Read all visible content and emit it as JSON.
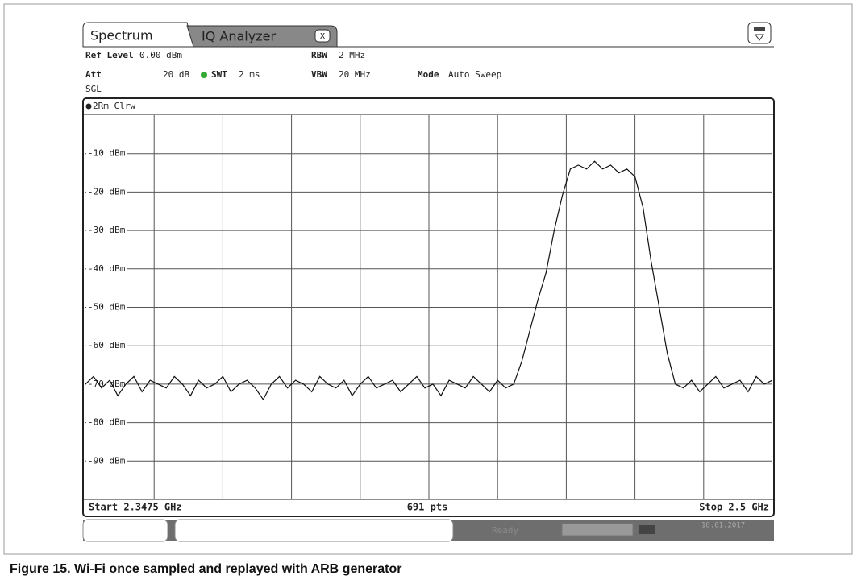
{
  "tabs": [
    "Spectrum",
    "IQ Analyzer",
    "X"
  ],
  "settings": {
    "ref_level_label": "Ref Level",
    "ref_level": "0.00 dBm",
    "rbw_label": "RBW",
    "rbw": "2 MHz",
    "att_label": "Att",
    "att": "20 dB",
    "swt_label": "SWT",
    "swt": "2 ms",
    "vbw_label": "VBW",
    "vbw": "20 MHz",
    "mode_label": "Mode",
    "mode": "Auto Sweep",
    "sweep": "SGL"
  },
  "plot": {
    "trace_label": "2Rm Clrw",
    "ylim": [
      -100,
      0
    ],
    "yticks": [
      {
        "value": -10,
        "label": "-10 dBm"
      },
      {
        "value": -20,
        "label": "-20 dBm"
      },
      {
        "value": -30,
        "label": "-30 dBm"
      },
      {
        "value": -40,
        "label": "-40 dBm"
      },
      {
        "value": -50,
        "label": "-50 dBm"
      },
      {
        "value": -60,
        "label": "-60 dBm"
      },
      {
        "value": -70,
        "label": "-70 dBm"
      },
      {
        "value": -80,
        "label": "-80 dBm"
      },
      {
        "value": -90,
        "label": "-90 dBm"
      }
    ],
    "trace": [
      -70,
      -68,
      -71,
      -69,
      -73,
      -70,
      -68,
      -72,
      -69,
      -70,
      -71,
      -68,
      -70,
      -73,
      -69,
      -71,
      -70,
      -68,
      -72,
      -70,
      -69,
      -71,
      -74,
      -70,
      -68,
      -71,
      -69,
      -70,
      -72,
      -68,
      -70,
      -71,
      -69,
      -73,
      -70,
      -68,
      -71,
      -70,
      -69,
      -72,
      -70,
      -68,
      -71,
      -70,
      -73,
      -69,
      -70,
      -71,
      -68,
      -70,
      -72,
      -69,
      -71,
      -70,
      -64,
      -56,
      -48,
      -41,
      -30,
      -21,
      -14,
      -13,
      -14,
      -12,
      -14,
      -13,
      -15,
      -14,
      -16,
      -24,
      -38,
      -50,
      -62,
      -70,
      -71,
      -69,
      -72,
      -70,
      -68,
      -71,
      -70,
      -69,
      -72,
      -68,
      -70,
      -69
    ]
  },
  "footer": {
    "start": "Start 2.3475 GHz",
    "points": "691 pts",
    "stop": "Stop 2.5 GHz"
  },
  "status": {
    "state": "Ready",
    "date": "18.01.2017"
  },
  "caption": "Figure 15.  Wi-Fi once sampled and replayed with ARB generator"
}
